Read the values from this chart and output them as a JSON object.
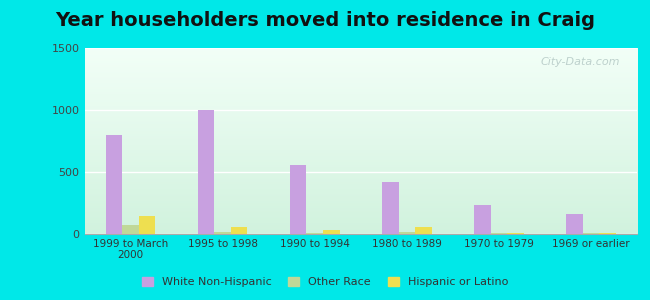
{
  "title": "Year householders moved into residence in Craig",
  "categories": [
    "1999 to March\n2000",
    "1995 to 1998",
    "1990 to 1994",
    "1980 to 1989",
    "1970 to 1979",
    "1969 or earlier"
  ],
  "white_non_hispanic": [
    800,
    1000,
    560,
    420,
    230,
    160
  ],
  "other_race": [
    70,
    20,
    10,
    20,
    5,
    10
  ],
  "hispanic_or_latino": [
    145,
    55,
    35,
    60,
    5,
    5
  ],
  "bar_width": 0.18,
  "white_color": "#c8a0e0",
  "other_color": "#c0d898",
  "hispanic_color": "#eedf50",
  "ylim": [
    0,
    1500
  ],
  "yticks": [
    0,
    500,
    1000,
    1500
  ],
  "bg_outer": "#00e8e8",
  "title_fontsize": 14,
  "watermark": "City-Data.com"
}
